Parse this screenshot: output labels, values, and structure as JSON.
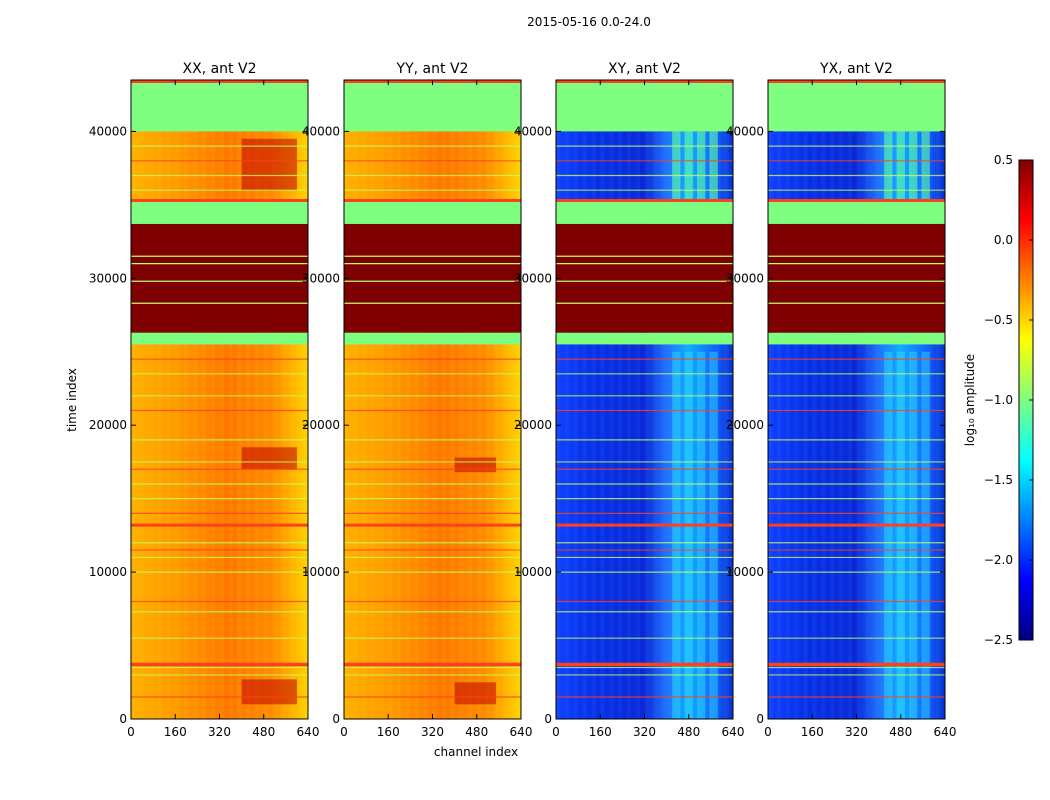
{
  "figure": {
    "suptitle": "2015-05-16 0.0-24.0"
  },
  "chart_data": {
    "type": "heatmap",
    "colormap": "jet",
    "shared_ylabel": "time index",
    "shared_xlabel": "channel index",
    "xlim": [
      0,
      640
    ],
    "ylim": [
      0,
      43500
    ],
    "xticks": [
      "0",
      "160",
      "320",
      "480",
      "640"
    ],
    "yticks": [
      "0",
      "10000",
      "20000",
      "30000",
      "40000"
    ],
    "panels": [
      {
        "title": "XX, ant V2",
        "kind": "auto"
      },
      {
        "title": "YY, ant V2",
        "kind": "auto"
      },
      {
        "title": "XY, ant V2",
        "kind": "cross"
      },
      {
        "title": "YX, ant V2",
        "kind": "cross"
      }
    ],
    "colorbar": {
      "label": "log₁₀ amplitude",
      "range": [
        -2.5,
        0.5
      ],
      "ticks": [
        "0.5",
        "0.0",
        "−0.5",
        "−1.0",
        "−1.5",
        "−2.0",
        "−2.5"
      ]
    },
    "flagged_time_ranges": [
      [
        40000,
        43500
      ],
      [
        33700,
        35300
      ],
      [
        25500,
        26300
      ]
    ],
    "saturated_time_ranges": [
      [
        26300,
        33700
      ]
    ],
    "colors": {
      "flagged": "#7fff7f",
      "saturated": "#7f0000"
    }
  }
}
